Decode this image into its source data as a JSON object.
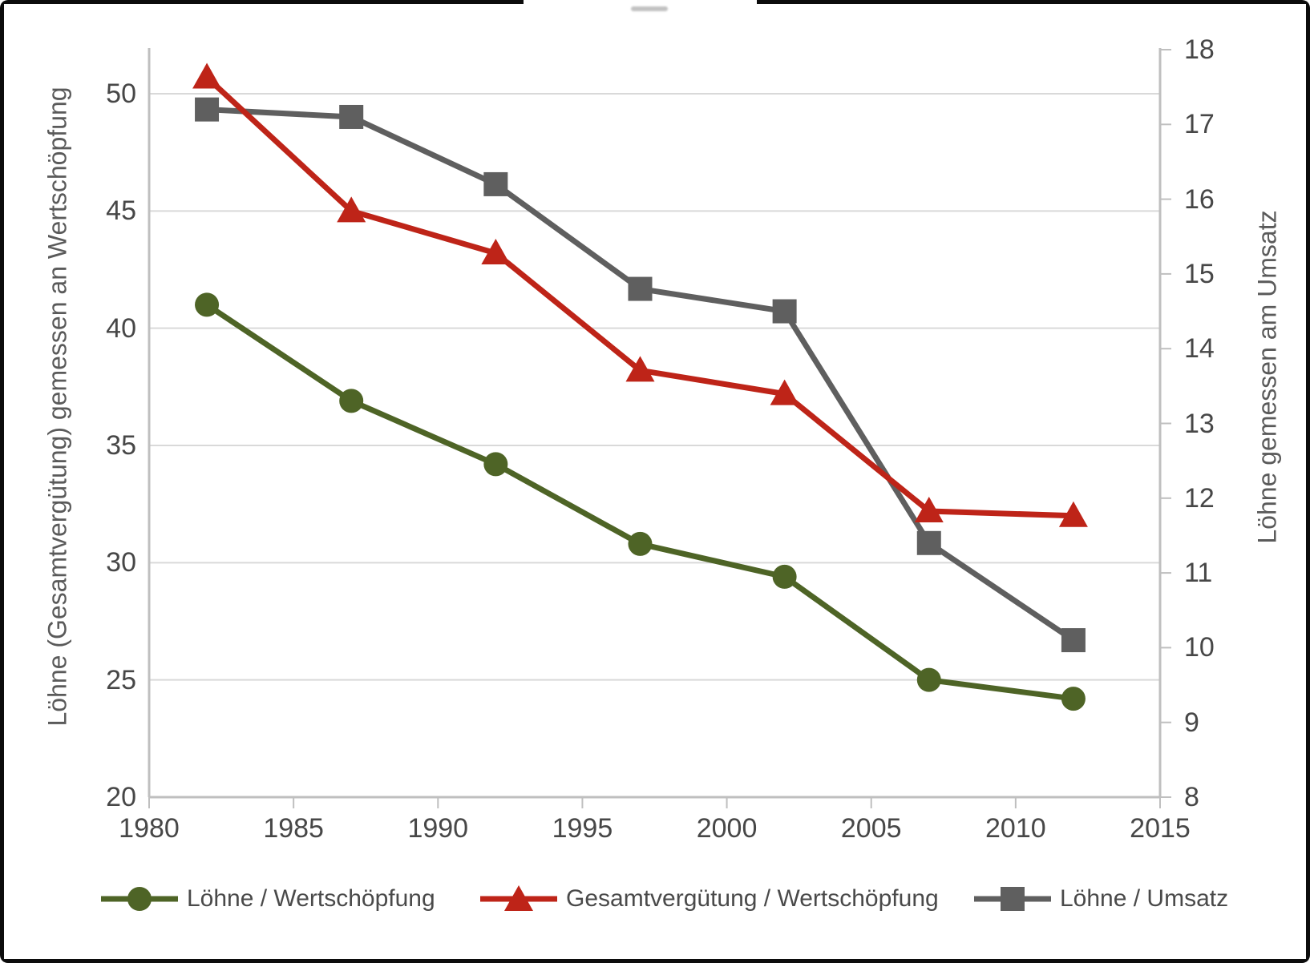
{
  "chart_data": {
    "type": "line",
    "title": "",
    "x": [
      1982,
      1987,
      1992,
      1997,
      2002,
      2007,
      2012
    ],
    "series": [
      {
        "name": "Löhne / Wertschöpfung",
        "axis": "left",
        "marker": "circle",
        "color": "#4e6426",
        "values": [
          41.0,
          36.9,
          34.2,
          30.8,
          29.4,
          25.0,
          24.2
        ]
      },
      {
        "name": "Gesamtvergütung / Wertschöpfung",
        "axis": "left",
        "marker": "triangle",
        "color": "#be2418",
        "values": [
          50.7,
          45.0,
          43.2,
          38.2,
          37.2,
          32.2,
          32.0
        ]
      },
      {
        "name": "Löhne / Umsatz",
        "axis": "right",
        "marker": "square",
        "color": "#5f5f5f",
        "values": [
          17.2,
          17.1,
          16.2,
          14.8,
          14.5,
          11.4,
          10.1
        ]
      }
    ],
    "left_axis": {
      "title": "Löhne (Gesamtvergütung) gemessen an Wertschöpfung",
      "min": 20,
      "max": 50,
      "ticks": [
        20,
        25,
        30,
        35,
        40,
        45,
        50
      ]
    },
    "right_axis": {
      "title": "Löhne gemessen am Umsatz",
      "min": 8,
      "max": 18,
      "ticks": [
        8,
        9,
        10,
        11,
        12,
        13,
        14,
        15,
        16,
        17,
        18
      ]
    },
    "x_axis": {
      "min": 1980,
      "max": 2015,
      "ticks": [
        1980,
        1985,
        1990,
        1995,
        2000,
        2005,
        2010,
        2015
      ]
    },
    "grid": "horizontal",
    "legend_position": "bottom",
    "style": {
      "gridline_color": "#d9d9d9",
      "axis_line_color": "#bfbfbf",
      "tick_color": "#bfbfbf",
      "plot_background": "#ffffff",
      "line_width": 7
    }
  }
}
